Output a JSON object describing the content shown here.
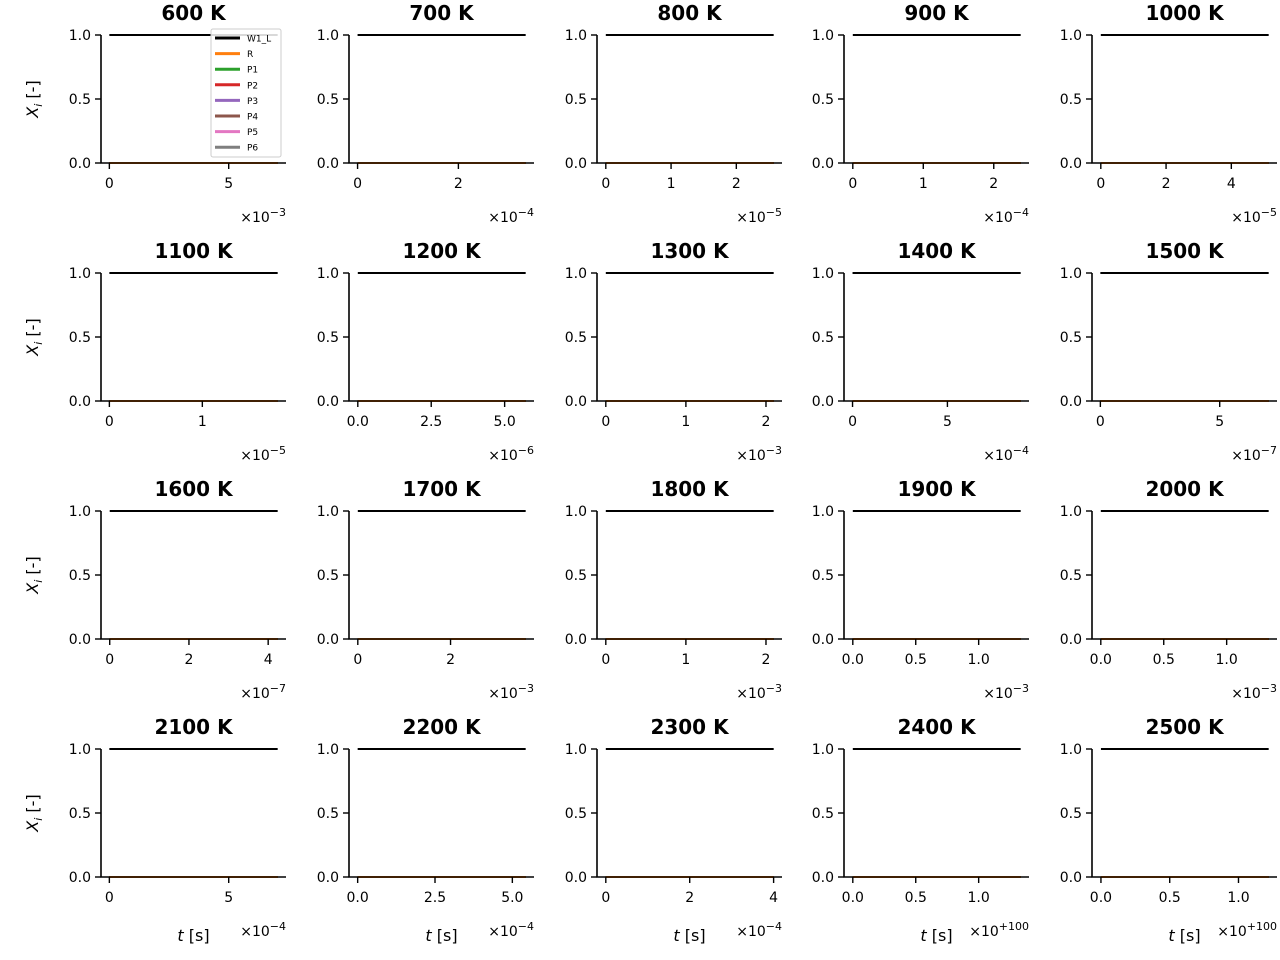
{
  "figure": {
    "ylabel_base": "X",
    "ylabel_sub": "i",
    "ylabel_unit": " [-]",
    "xlabel_var": "t",
    "xlabel_unit": " [s]"
  },
  "chart_data": [
    {
      "type": "line",
      "title": "600 K",
      "xticks": [
        {
          "v": 0,
          "l": "0"
        },
        {
          "v": 5,
          "l": "5"
        }
      ],
      "xlim": [
        -0.35,
        7.4
      ],
      "mult": "×10",
      "exp": "−3",
      "ylim": [
        0,
        1
      ],
      "yticks": [
        "0.0",
        "0.5",
        "1.0"
      ],
      "legend": true,
      "series": [
        {
          "name": "W1_L",
          "color": "#000000",
          "values": [
            1,
            1
          ]
        },
        {
          "name": "R",
          "color": "#ff7f0e",
          "values": [
            0,
            0
          ]
        },
        {
          "name": "P1",
          "color": "#2ca02c",
          "values": [
            0,
            0
          ]
        },
        {
          "name": "P2",
          "color": "#d62728",
          "values": [
            0,
            0
          ]
        },
        {
          "name": "P3",
          "color": "#9467bd",
          "values": [
            0,
            0
          ]
        },
        {
          "name": "P4",
          "color": "#8c564b",
          "values": [
            0,
            0
          ]
        },
        {
          "name": "P5",
          "color": "#e377c2",
          "values": [
            0,
            0
          ]
        },
        {
          "name": "P6",
          "color": "#7f7f7f",
          "values": [
            0,
            0
          ]
        }
      ]
    },
    {
      "type": "line",
      "title": "700 K",
      "xticks": [
        {
          "v": 0,
          "l": "0"
        },
        {
          "v": 2,
          "l": "2"
        }
      ],
      "xlim": [
        -0.17,
        3.5
      ],
      "mult": "×10",
      "exp": "−4",
      "ylim": [
        0,
        1
      ],
      "yticks": [
        "0.0",
        "0.5",
        "1.0"
      ]
    },
    {
      "type": "line",
      "title": "800 K",
      "xticks": [
        {
          "v": 0,
          "l": "0"
        },
        {
          "v": 1,
          "l": "1"
        },
        {
          "v": 2,
          "l": "2"
        }
      ],
      "xlim": [
        -0.135,
        2.7
      ],
      "mult": "×10",
      "exp": "−5",
      "ylim": [
        0,
        1
      ],
      "yticks": [
        "0.0",
        "0.5",
        "1.0"
      ]
    },
    {
      "type": "line",
      "title": "900 K",
      "xticks": [
        {
          "v": 0,
          "l": "0"
        },
        {
          "v": 1,
          "l": "1"
        },
        {
          "v": 2,
          "l": "2"
        }
      ],
      "xlim": [
        -0.125,
        2.5
      ],
      "mult": "×10",
      "exp": "−4",
      "ylim": [
        0,
        1
      ],
      "yticks": [
        "0.0",
        "0.5",
        "1.0"
      ]
    },
    {
      "type": "line",
      "title": "1000 K",
      "xticks": [
        {
          "v": 0,
          "l": "0"
        },
        {
          "v": 2,
          "l": "2"
        },
        {
          "v": 4,
          "l": "4"
        }
      ],
      "xlim": [
        -0.27,
        5.4
      ],
      "mult": "×10",
      "exp": "−5",
      "ylim": [
        0,
        1
      ],
      "yticks": [
        "0.0",
        "0.5",
        "1.0"
      ]
    },
    {
      "type": "line",
      "title": "1100 K",
      "xticks": [
        {
          "v": 0,
          "l": "0"
        },
        {
          "v": 1,
          "l": "1"
        }
      ],
      "xlim": [
        -0.09,
        1.9
      ],
      "mult": "×10",
      "exp": "−5",
      "ylim": [
        0,
        1
      ],
      "yticks": [
        "0.0",
        "0.5",
        "1.0"
      ]
    },
    {
      "type": "line",
      "title": "1200 K",
      "xticks": [
        {
          "v": 0,
          "l": "0.0"
        },
        {
          "v": 2.5,
          "l": "2.5"
        },
        {
          "v": 5,
          "l": "5.0"
        }
      ],
      "xlim": [
        -0.3,
        6.0
      ],
      "mult": "×10",
      "exp": "−6",
      "ylim": [
        0,
        1
      ],
      "yticks": [
        "0.0",
        "0.5",
        "1.0"
      ]
    },
    {
      "type": "line",
      "title": "1300 K",
      "xticks": [
        {
          "v": 0,
          "l": "0"
        },
        {
          "v": 1,
          "l": "1"
        },
        {
          "v": 2,
          "l": "2"
        }
      ],
      "xlim": [
        -0.11,
        2.2
      ],
      "mult": "×10",
      "exp": "−3",
      "ylim": [
        0,
        1
      ],
      "yticks": [
        "0.0",
        "0.5",
        "1.0"
      ]
    },
    {
      "type": "line",
      "title": "1400 K",
      "xticks": [
        {
          "v": 0,
          "l": "0"
        },
        {
          "v": 5,
          "l": "5"
        }
      ],
      "xlim": [
        -0.45,
        9.3
      ],
      "mult": "×10",
      "exp": "−4",
      "ylim": [
        0,
        1
      ],
      "yticks": [
        "0.0",
        "0.5",
        "1.0"
      ]
    },
    {
      "type": "line",
      "title": "1500 K",
      "xticks": [
        {
          "v": 0,
          "l": "0"
        },
        {
          "v": 5,
          "l": "5"
        }
      ],
      "xlim": [
        -0.35,
        7.4
      ],
      "mult": "×10",
      "exp": "−7",
      "ylim": [
        0,
        1
      ],
      "yticks": [
        "0.0",
        "0.5",
        "1.0"
      ]
    },
    {
      "type": "line",
      "title": "1600 K",
      "xticks": [
        {
          "v": 0,
          "l": "0"
        },
        {
          "v": 2,
          "l": "2"
        },
        {
          "v": 4,
          "l": "4"
        }
      ],
      "xlim": [
        -0.22,
        4.45
      ],
      "mult": "×10",
      "exp": "−7",
      "ylim": [
        0,
        1
      ],
      "yticks": [
        "0.0",
        "0.5",
        "1.0"
      ]
    },
    {
      "type": "line",
      "title": "1700 K",
      "xticks": [
        {
          "v": 0,
          "l": "0"
        },
        {
          "v": 2,
          "l": "2"
        }
      ],
      "xlim": [
        -0.19,
        3.8
      ],
      "mult": "×10",
      "exp": "−3",
      "ylim": [
        0,
        1
      ],
      "yticks": [
        "0.0",
        "0.5",
        "1.0"
      ]
    },
    {
      "type": "line",
      "title": "1800 K",
      "xticks": [
        {
          "v": 0,
          "l": "0"
        },
        {
          "v": 1,
          "l": "1"
        },
        {
          "v": 2,
          "l": "2"
        }
      ],
      "xlim": [
        -0.11,
        2.2
      ],
      "mult": "×10",
      "exp": "−3",
      "ylim": [
        0,
        1
      ],
      "yticks": [
        "0.0",
        "0.5",
        "1.0"
      ]
    },
    {
      "type": "line",
      "title": "1900 K",
      "xticks": [
        {
          "v": 0,
          "l": "0.0"
        },
        {
          "v": 0.5,
          "l": "0.5"
        },
        {
          "v": 1,
          "l": "1.0"
        }
      ],
      "xlim": [
        -0.07,
        1.4
      ],
      "mult": "×10",
      "exp": "−3",
      "ylim": [
        0,
        1
      ],
      "yticks": [
        "0.0",
        "0.5",
        "1.0"
      ]
    },
    {
      "type": "line",
      "title": "2000 K",
      "xticks": [
        {
          "v": 0,
          "l": "0.0"
        },
        {
          "v": 0.5,
          "l": "0.5"
        },
        {
          "v": 1,
          "l": "1.0"
        }
      ],
      "xlim": [
        -0.07,
        1.4
      ],
      "mult": "×10",
      "exp": "−3",
      "ylim": [
        0,
        1
      ],
      "yticks": [
        "0.0",
        "0.5",
        "1.0"
      ]
    },
    {
      "type": "line",
      "title": "2100 K",
      "xticks": [
        {
          "v": 0,
          "l": "0"
        },
        {
          "v": 5,
          "l": "5"
        }
      ],
      "xlim": [
        -0.35,
        7.4
      ],
      "mult": "×10",
      "exp": "−4",
      "ylim": [
        0,
        1
      ],
      "yticks": [
        "0.0",
        "0.5",
        "1.0"
      ]
    },
    {
      "type": "line",
      "title": "2200 K",
      "xticks": [
        {
          "v": 0,
          "l": "0.0"
        },
        {
          "v": 2.5,
          "l": "2.5"
        },
        {
          "v": 5,
          "l": "5.0"
        }
      ],
      "xlim": [
        -0.28,
        5.7
      ],
      "mult": "×10",
      "exp": "−4",
      "ylim": [
        0,
        1
      ],
      "yticks": [
        "0.0",
        "0.5",
        "1.0"
      ]
    },
    {
      "type": "line",
      "title": "2300 K",
      "xticks": [
        {
          "v": 0,
          "l": "0"
        },
        {
          "v": 2,
          "l": "2"
        },
        {
          "v": 4,
          "l": "4"
        }
      ],
      "xlim": [
        -0.21,
        4.2
      ],
      "mult": "×10",
      "exp": "−4",
      "ylim": [
        0,
        1
      ],
      "yticks": [
        "0.0",
        "0.5",
        "1.0"
      ]
    },
    {
      "type": "line",
      "title": "2400 K",
      "xticks": [
        {
          "v": 0,
          "l": "0.0"
        },
        {
          "v": 0.5,
          "l": "0.5"
        },
        {
          "v": 1,
          "l": "1.0"
        }
      ],
      "xlim": [
        -0.07,
        1.4
      ],
      "mult": "×10",
      "exp": "+100",
      "ylim": [
        0,
        1
      ],
      "yticks": [
        "0.0",
        "0.5",
        "1.0"
      ]
    },
    {
      "type": "line",
      "title": "2500 K",
      "xticks": [
        {
          "v": 0,
          "l": "0.0"
        },
        {
          "v": 0.5,
          "l": "0.5"
        },
        {
          "v": 1,
          "l": "1.0"
        }
      ],
      "xlim": [
        -0.065,
        1.28
      ],
      "mult": "×10",
      "exp": "+100",
      "ylim": [
        0,
        1
      ],
      "yticks": [
        "0.0",
        "0.5",
        "1.0"
      ]
    }
  ]
}
